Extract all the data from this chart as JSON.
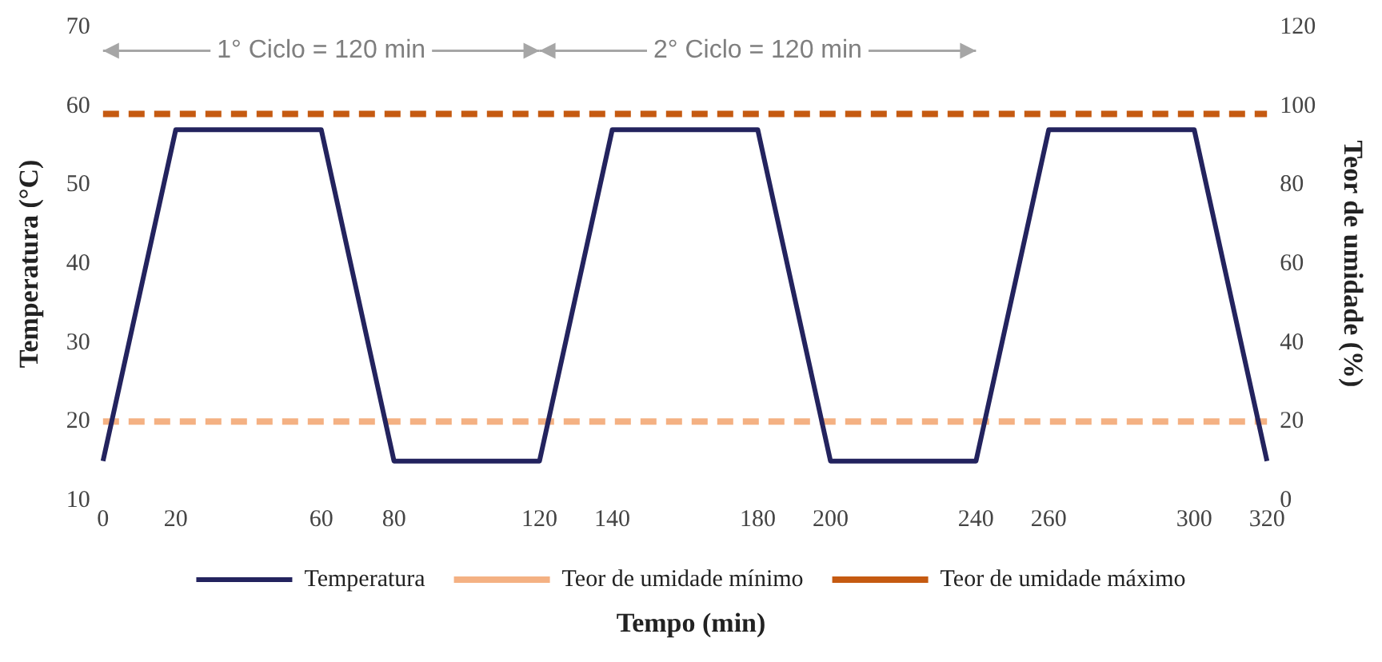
{
  "chart_data": {
    "type": "line",
    "xlabel": "Tempo (min)",
    "ylabel": "Temperatura (°C)",
    "y2label": "Teor de umidade (%)",
    "x": [
      0,
      20,
      60,
      80,
      120,
      140,
      180,
      200,
      240,
      260,
      300,
      320
    ],
    "xlim": [
      0,
      320
    ],
    "xticks": [
      0,
      20,
      60,
      80,
      120,
      140,
      180,
      200,
      240,
      260,
      300,
      320
    ],
    "ylim": [
      10,
      70
    ],
    "yticks": [
      10,
      20,
      30,
      40,
      50,
      60,
      70
    ],
    "y2lim": [
      0,
      120
    ],
    "y2ticks": [
      0,
      20,
      40,
      60,
      80,
      100,
      120
    ],
    "grid": false,
    "legend": "bottom",
    "marker": "none",
    "series": [
      {
        "name": "Temperatura",
        "color": "#23235e",
        "line_style": "solid",
        "values": [
          15,
          57,
          57,
          15,
          15,
          57,
          57,
          15,
          15,
          57,
          57,
          15
        ]
      },
      {
        "name": "Teor de umidade mínimo",
        "color": "#f4b183",
        "line_style": "dashed",
        "axis": "y2",
        "values": [
          20,
          20,
          20,
          20,
          20,
          20,
          20,
          20,
          20,
          20,
          20,
          20
        ]
      },
      {
        "name": "Teor de umidade máximo",
        "color": "#c55a11",
        "line_style": "dashed",
        "axis": "y2",
        "values": [
          98,
          98,
          98,
          98,
          98,
          98,
          98,
          98,
          98,
          98,
          98,
          98
        ]
      }
    ],
    "annotations": [
      "1° Ciclo = 120 min",
      "2° Ciclo = 120 min"
    ]
  }
}
